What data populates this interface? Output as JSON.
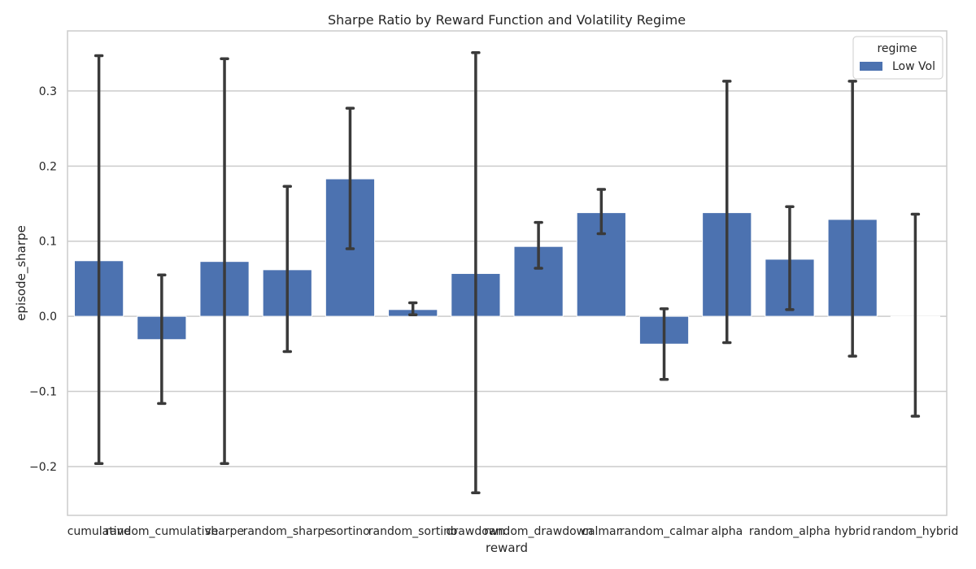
{
  "chart_data": {
    "type": "bar",
    "title": "Sharpe Ratio by Reward Function and Volatility Regime",
    "xlabel": "reward",
    "ylabel": "episode_sharpe",
    "ylim": [
      -0.265,
      0.38
    ],
    "yticks": [
      -0.2,
      -0.1,
      0.0,
      0.1,
      0.2,
      0.3
    ],
    "ytick_labels": [
      "−0.2",
      "−0.1",
      "0.0",
      "0.1",
      "0.2",
      "0.3"
    ],
    "grid": true,
    "legend": {
      "title": "regime",
      "placement": "top-right"
    },
    "categories": [
      "cumulative",
      "random_cumulative",
      "sharpe",
      "random_sharpe",
      "sortino",
      "random_sortino",
      "drawdown",
      "random_drawdown",
      "calmar",
      "random_calmar",
      "alpha",
      "random_alpha",
      "hybrid",
      "random_hybrid"
    ],
    "series": [
      {
        "name": "Low Vol",
        "color": "#4c72b0",
        "values": [
          0.074,
          -0.031,
          0.073,
          0.062,
          0.183,
          0.009,
          0.057,
          0.093,
          0.138,
          -0.037,
          0.138,
          0.076,
          0.129,
          0.0
        ],
        "ci_low": [
          -0.196,
          -0.116,
          -0.196,
          -0.047,
          0.09,
          0.002,
          -0.235,
          0.064,
          0.11,
          -0.084,
          -0.035,
          0.009,
          -0.053,
          -0.133
        ],
        "ci_high": [
          0.347,
          0.055,
          0.343,
          0.173,
          0.277,
          0.018,
          0.351,
          0.125,
          0.169,
          0.01,
          0.313,
          0.146,
          0.313,
          0.136
        ]
      }
    ],
    "colors": {
      "axis": "#cccccc",
      "grid": "#cccccc",
      "errorbar": "#3a3a3a"
    }
  }
}
